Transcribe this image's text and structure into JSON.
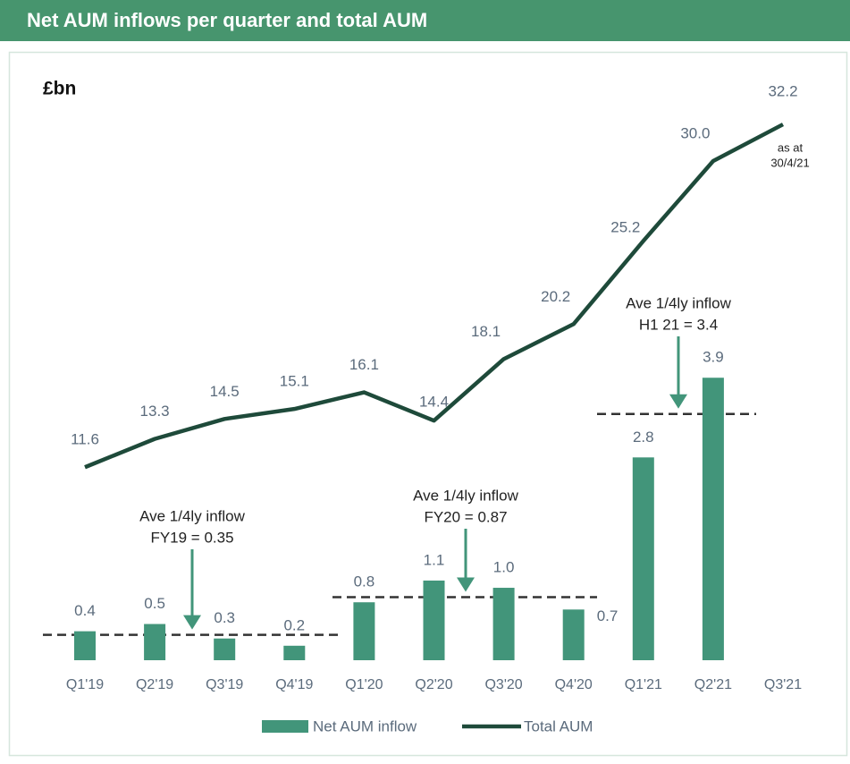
{
  "header": {
    "title": "Net AUM inflows per quarter and total AUM"
  },
  "chart_data": {
    "type": "combo",
    "unit_label": "£bn",
    "categories": [
      "Q1'19",
      "Q2'19",
      "Q3'19",
      "Q4'19",
      "Q1'20",
      "Q2'20",
      "Q3'20",
      "Q4'20",
      "Q1'21",
      "Q2'21",
      "Q3'21"
    ],
    "series": [
      {
        "name": "Net AUM inflow",
        "type": "bar",
        "color": "#42957a",
        "axis": "y",
        "values": [
          0.4,
          0.5,
          0.3,
          0.2,
          0.8,
          1.1,
          1.0,
          0.7,
          2.8,
          3.9,
          null
        ],
        "value_labels": [
          "0.4",
          "0.5",
          "0.3",
          "0.2",
          "0.8",
          "1.1",
          "1.0",
          "0.7",
          "2.8",
          "3.9",
          null
        ]
      },
      {
        "name": "Total AUM",
        "type": "line",
        "color": "#1e4a3a",
        "axis": "y2",
        "values": [
          11.6,
          13.3,
          14.5,
          15.1,
          16.1,
          14.4,
          18.1,
          20.2,
          25.2,
          30.0,
          32.2
        ],
        "value_labels": [
          "11.6",
          "13.3",
          "14.5",
          "15.1",
          "16.1",
          "14.4",
          "18.1",
          "20.2",
          "25.2",
          "30.0",
          "32.2"
        ]
      }
    ],
    "ylim": [
      0,
      7.88
    ],
    "y2lim": [
      0,
      34.3
    ],
    "point_note": [
      "as at",
      "30/4/21"
    ],
    "annotations": [
      {
        "lines": [
          "Ave 1/4ly inflow",
          "FY19 = 0.35"
        ],
        "value": 0.35
      },
      {
        "lines": [
          "Ave 1/4ly inflow",
          "FY20 = 0.87"
        ],
        "value": 0.87
      },
      {
        "lines": [
          "Ave 1/4ly inflow",
          "H1 21 = 3.4"
        ],
        "value": 3.4
      }
    ],
    "legend": "bottom"
  }
}
